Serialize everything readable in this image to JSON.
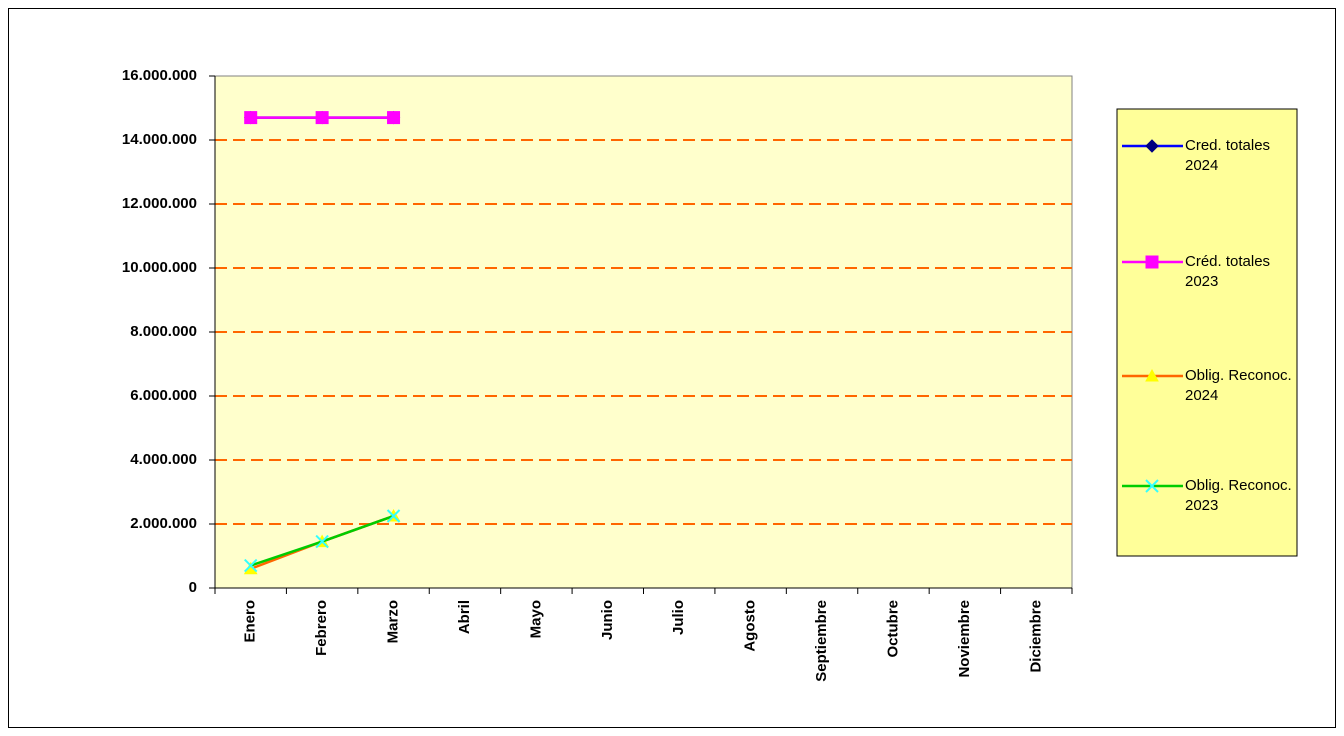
{
  "chart_data": {
    "type": "line",
    "categories": [
      "Enero",
      "Febrero",
      "Marzo",
      "Abril",
      "Mayo",
      "Junio",
      "Julio",
      "Agosto",
      "Septiembre",
      "Octubre",
      "Noviembre",
      "Diciembre"
    ],
    "series": [
      {
        "name": "Cred. totales 2024",
        "color": "#0000ff",
        "marker_color": "#000080",
        "marker": "diamond",
        "values": [
          14700000,
          14700000,
          14700000,
          null,
          null,
          null,
          null,
          null,
          null,
          null,
          null,
          null
        ]
      },
      {
        "name": "Créd. totales 2023",
        "color": "#ff00ff",
        "marker_color": "#ff00ff",
        "marker": "square",
        "values": [
          14700000,
          14700000,
          14700000,
          null,
          null,
          null,
          null,
          null,
          null,
          null,
          null,
          null
        ]
      },
      {
        "name": "Oblig. Reconoc. 2024",
        "color": "#ff6600",
        "marker_color": "#ffff00",
        "marker": "triangle",
        "values": [
          600000,
          1450000,
          2250000,
          null,
          null,
          null,
          null,
          null,
          null,
          null,
          null,
          null
        ]
      },
      {
        "name": "Oblig. Reconoc. 2023",
        "color": "#00cc00",
        "marker_color": "#33ffff",
        "marker": "x",
        "values": [
          700000,
          1450000,
          2250000,
          null,
          null,
          null,
          null,
          null,
          null,
          null,
          null,
          null
        ]
      }
    ],
    "ylim": [
      0,
      16000000
    ],
    "yticks": [
      0,
      {
        "value": 2000000,
        "label": "2.000.000"
      },
      {
        "value": 4000000,
        "label": "4.000.000"
      },
      {
        "value": 6000000,
        "label": "6.000.000"
      },
      {
        "value": 8000000,
        "label": "8.000.000"
      },
      {
        "value": 10000000,
        "label": "10.000.000"
      },
      {
        "value": 12000000,
        "label": "12.000.000"
      },
      {
        "value": 14000000,
        "label": "14.000.000"
      },
      {
        "value": 16000000,
        "label": "16.000.000"
      }
    ],
    "grid": true,
    "grid_color": "#ff6600",
    "plot_background": "#ffffcc",
    "legend": "right",
    "legend_background": "#ffff99"
  }
}
